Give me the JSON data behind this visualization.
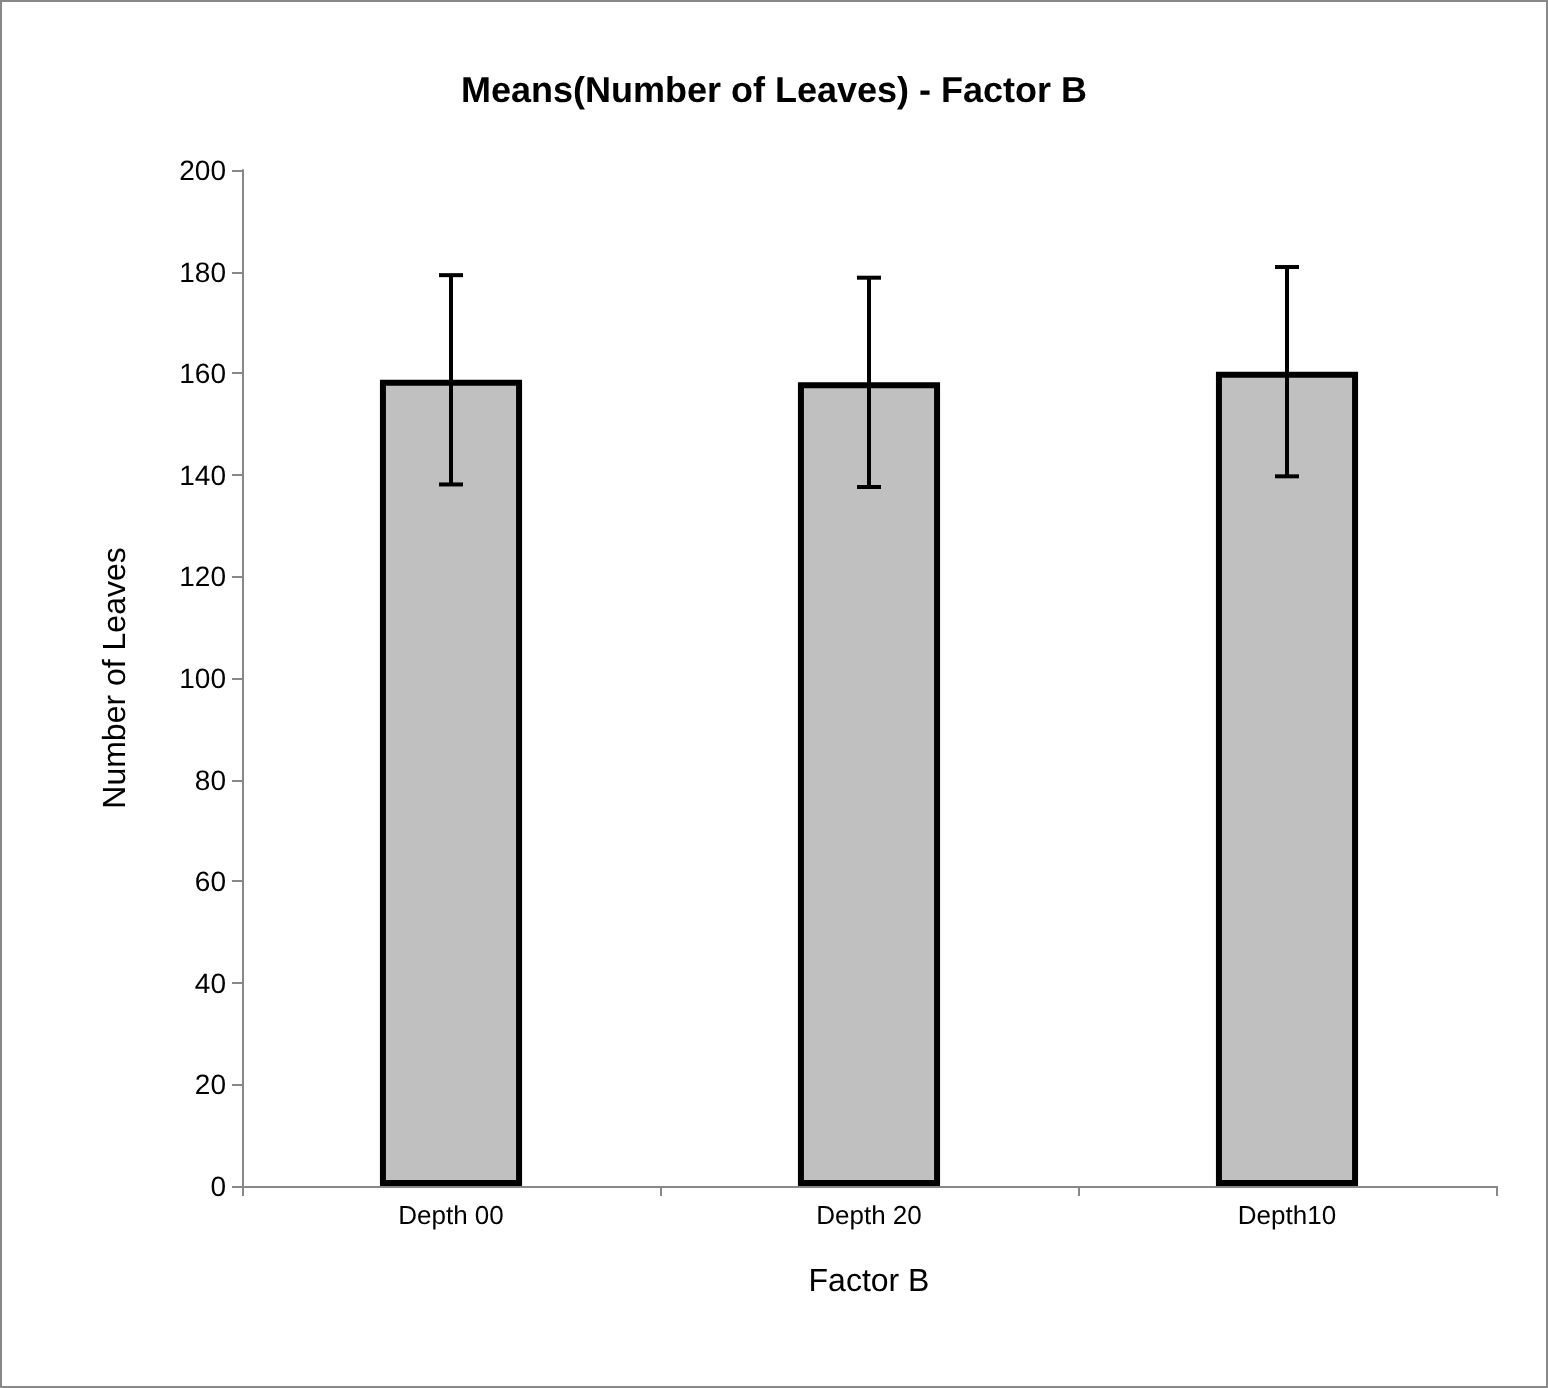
{
  "chart_data": {
    "type": "bar",
    "title": "Means(Number of Leaves) - Factor B",
    "xlabel": "Factor B",
    "ylabel": "Number of Leaves",
    "categories": [
      "Depth 00",
      "Depth 20",
      "Depth10"
    ],
    "values": [
      158.7,
      158.2,
      160.3
    ],
    "color": "#c0c0c0",
    "errors": [
      20.6,
      20.6,
      20.6
    ],
    "ylim": [
      0,
      200
    ],
    "yticks": [
      0,
      20,
      40,
      60,
      80,
      100,
      120,
      140,
      160,
      180,
      200
    ],
    "grid": false
  }
}
